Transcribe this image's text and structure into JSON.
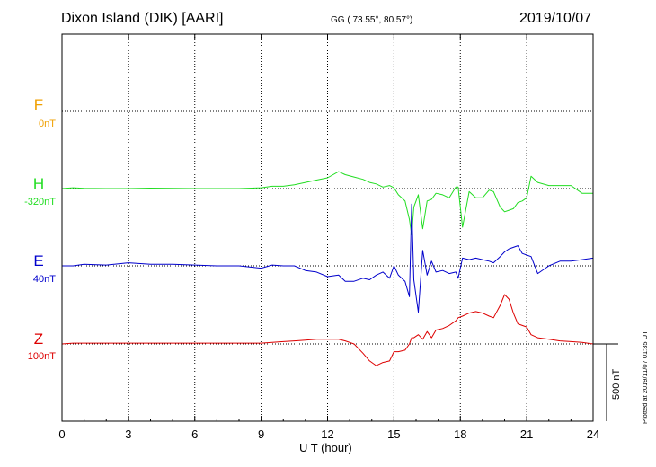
{
  "header": {
    "station": "Dixon Island (DIK)  [AARI]",
    "coords": "GG ( 73.55°,  80.57°)",
    "date": "2019/10/07"
  },
  "colors": {
    "F": "#f0a000",
    "H": "#22dd22",
    "E": "#0000cc",
    "Z": "#dd0000",
    "axis": "#000000",
    "grid": "#000000"
  },
  "components": [
    {
      "name": "F",
      "baseline": "0nT"
    },
    {
      "name": "H",
      "baseline": "-320nT"
    },
    {
      "name": "E",
      "baseline": "40nT"
    },
    {
      "name": "Z",
      "baseline": "100nT"
    }
  ],
  "scale_bar": {
    "label": "500 nT"
  },
  "plotted_note": "Plotted at 2019/11/07 01:35 UT",
  "chart_data": {
    "type": "line",
    "xlabel": "U T (hour)",
    "xlim": [
      0,
      24
    ],
    "xticks": [
      "0",
      "3",
      "6",
      "9",
      "12",
      "15",
      "18",
      "21",
      "24"
    ],
    "grid": true,
    "units": "nT",
    "series": [
      {
        "name": "F",
        "x": [],
        "y": []
      },
      {
        "name": "H",
        "x": [
          0,
          0.5,
          1,
          2,
          3,
          4,
          5,
          6,
          7,
          8,
          9,
          9.5,
          10,
          10.5,
          11,
          11.5,
          12,
          12.5,
          12.8,
          13.2,
          13.6,
          13.9,
          14.2,
          14.5,
          14.8,
          15.0,
          15.2,
          15.5,
          15.7,
          15.8,
          15.9,
          16.1,
          16.3,
          16.5,
          16.7,
          16.9,
          17.2,
          17.5,
          17.8,
          17.9,
          18.1,
          18.4,
          18.7,
          19.0,
          19.3,
          19.5,
          19.8,
          20.0,
          20.2,
          20.4,
          20.6,
          20.8,
          21.0,
          21.2,
          21.5,
          22.0,
          22.5,
          23.0,
          23.5,
          24.0
        ],
        "y": [
          0,
          5,
          2,
          0,
          0,
          3,
          2,
          0,
          0,
          0,
          5,
          15,
          15,
          25,
          40,
          55,
          70,
          110,
          90,
          75,
          60,
          40,
          30,
          10,
          20,
          5,
          -40,
          -80,
          -200,
          -300,
          -120,
          -40,
          -260,
          -80,
          -70,
          -30,
          -40,
          -60,
          10,
          10,
          -250,
          -20,
          -60,
          -60,
          -10,
          -20,
          -120,
          -150,
          -140,
          -130,
          -90,
          -80,
          -60,
          80,
          40,
          20,
          20,
          20,
          -30,
          -30
        ]
      },
      {
        "name": "E",
        "x": [
          0,
          0.5,
          1,
          2,
          3,
          4,
          5,
          6,
          7,
          8,
          9,
          9.5,
          10,
          10.5,
          11,
          11.5,
          12,
          12.5,
          12.8,
          13.2,
          13.6,
          13.9,
          14.2,
          14.5,
          14.8,
          15.0,
          15.2,
          15.5,
          15.7,
          15.8,
          15.9,
          16.1,
          16.3,
          16.5,
          16.7,
          16.9,
          17.2,
          17.5,
          17.8,
          17.9,
          18.1,
          18.4,
          18.7,
          19.0,
          19.3,
          19.5,
          19.8,
          20.0,
          20.2,
          20.4,
          20.6,
          20.8,
          21.0,
          21.2,
          21.5,
          22.0,
          22.5,
          23.0,
          23.5,
          24.0
        ],
        "y": [
          0,
          0,
          10,
          5,
          20,
          10,
          10,
          5,
          0,
          0,
          -15,
          5,
          0,
          0,
          -30,
          -40,
          -70,
          -60,
          -100,
          -100,
          -80,
          -90,
          -60,
          -40,
          -80,
          0,
          -60,
          -100,
          -200,
          400,
          -90,
          -300,
          100,
          -60,
          30,
          -40,
          -30,
          -50,
          -40,
          -80,
          50,
          40,
          50,
          40,
          30,
          20,
          60,
          90,
          110,
          120,
          130,
          80,
          70,
          60,
          -50,
          0,
          30,
          30,
          40,
          50
        ]
      },
      {
        "name": "Z",
        "x": [
          0,
          0.5,
          1,
          2,
          3,
          4,
          5,
          6,
          7,
          8,
          9,
          9.5,
          10,
          10.5,
          11,
          11.5,
          12,
          12.5,
          12.8,
          13.2,
          13.6,
          13.9,
          14.2,
          14.5,
          14.8,
          15.0,
          15.2,
          15.5,
          15.7,
          15.8,
          15.9,
          16.1,
          16.3,
          16.5,
          16.7,
          16.9,
          17.2,
          17.5,
          17.8,
          17.9,
          18.1,
          18.4,
          18.7,
          19.0,
          19.3,
          19.5,
          19.8,
          20.0,
          20.2,
          20.4,
          20.6,
          20.8,
          21.0,
          21.2,
          21.5,
          22.0,
          22.5,
          23.0,
          23.5,
          24.0
        ],
        "y": [
          0,
          5,
          5,
          5,
          5,
          5,
          5,
          5,
          5,
          5,
          5,
          10,
          15,
          20,
          25,
          30,
          30,
          30,
          20,
          0,
          -60,
          -110,
          -140,
          -120,
          -110,
          -50,
          -50,
          -40,
          0,
          40,
          40,
          60,
          30,
          80,
          40,
          90,
          100,
          120,
          150,
          170,
          180,
          200,
          210,
          200,
          180,
          170,
          250,
          320,
          290,
          200,
          130,
          120,
          110,
          60,
          40,
          30,
          20,
          15,
          10,
          0
        ]
      }
    ]
  }
}
